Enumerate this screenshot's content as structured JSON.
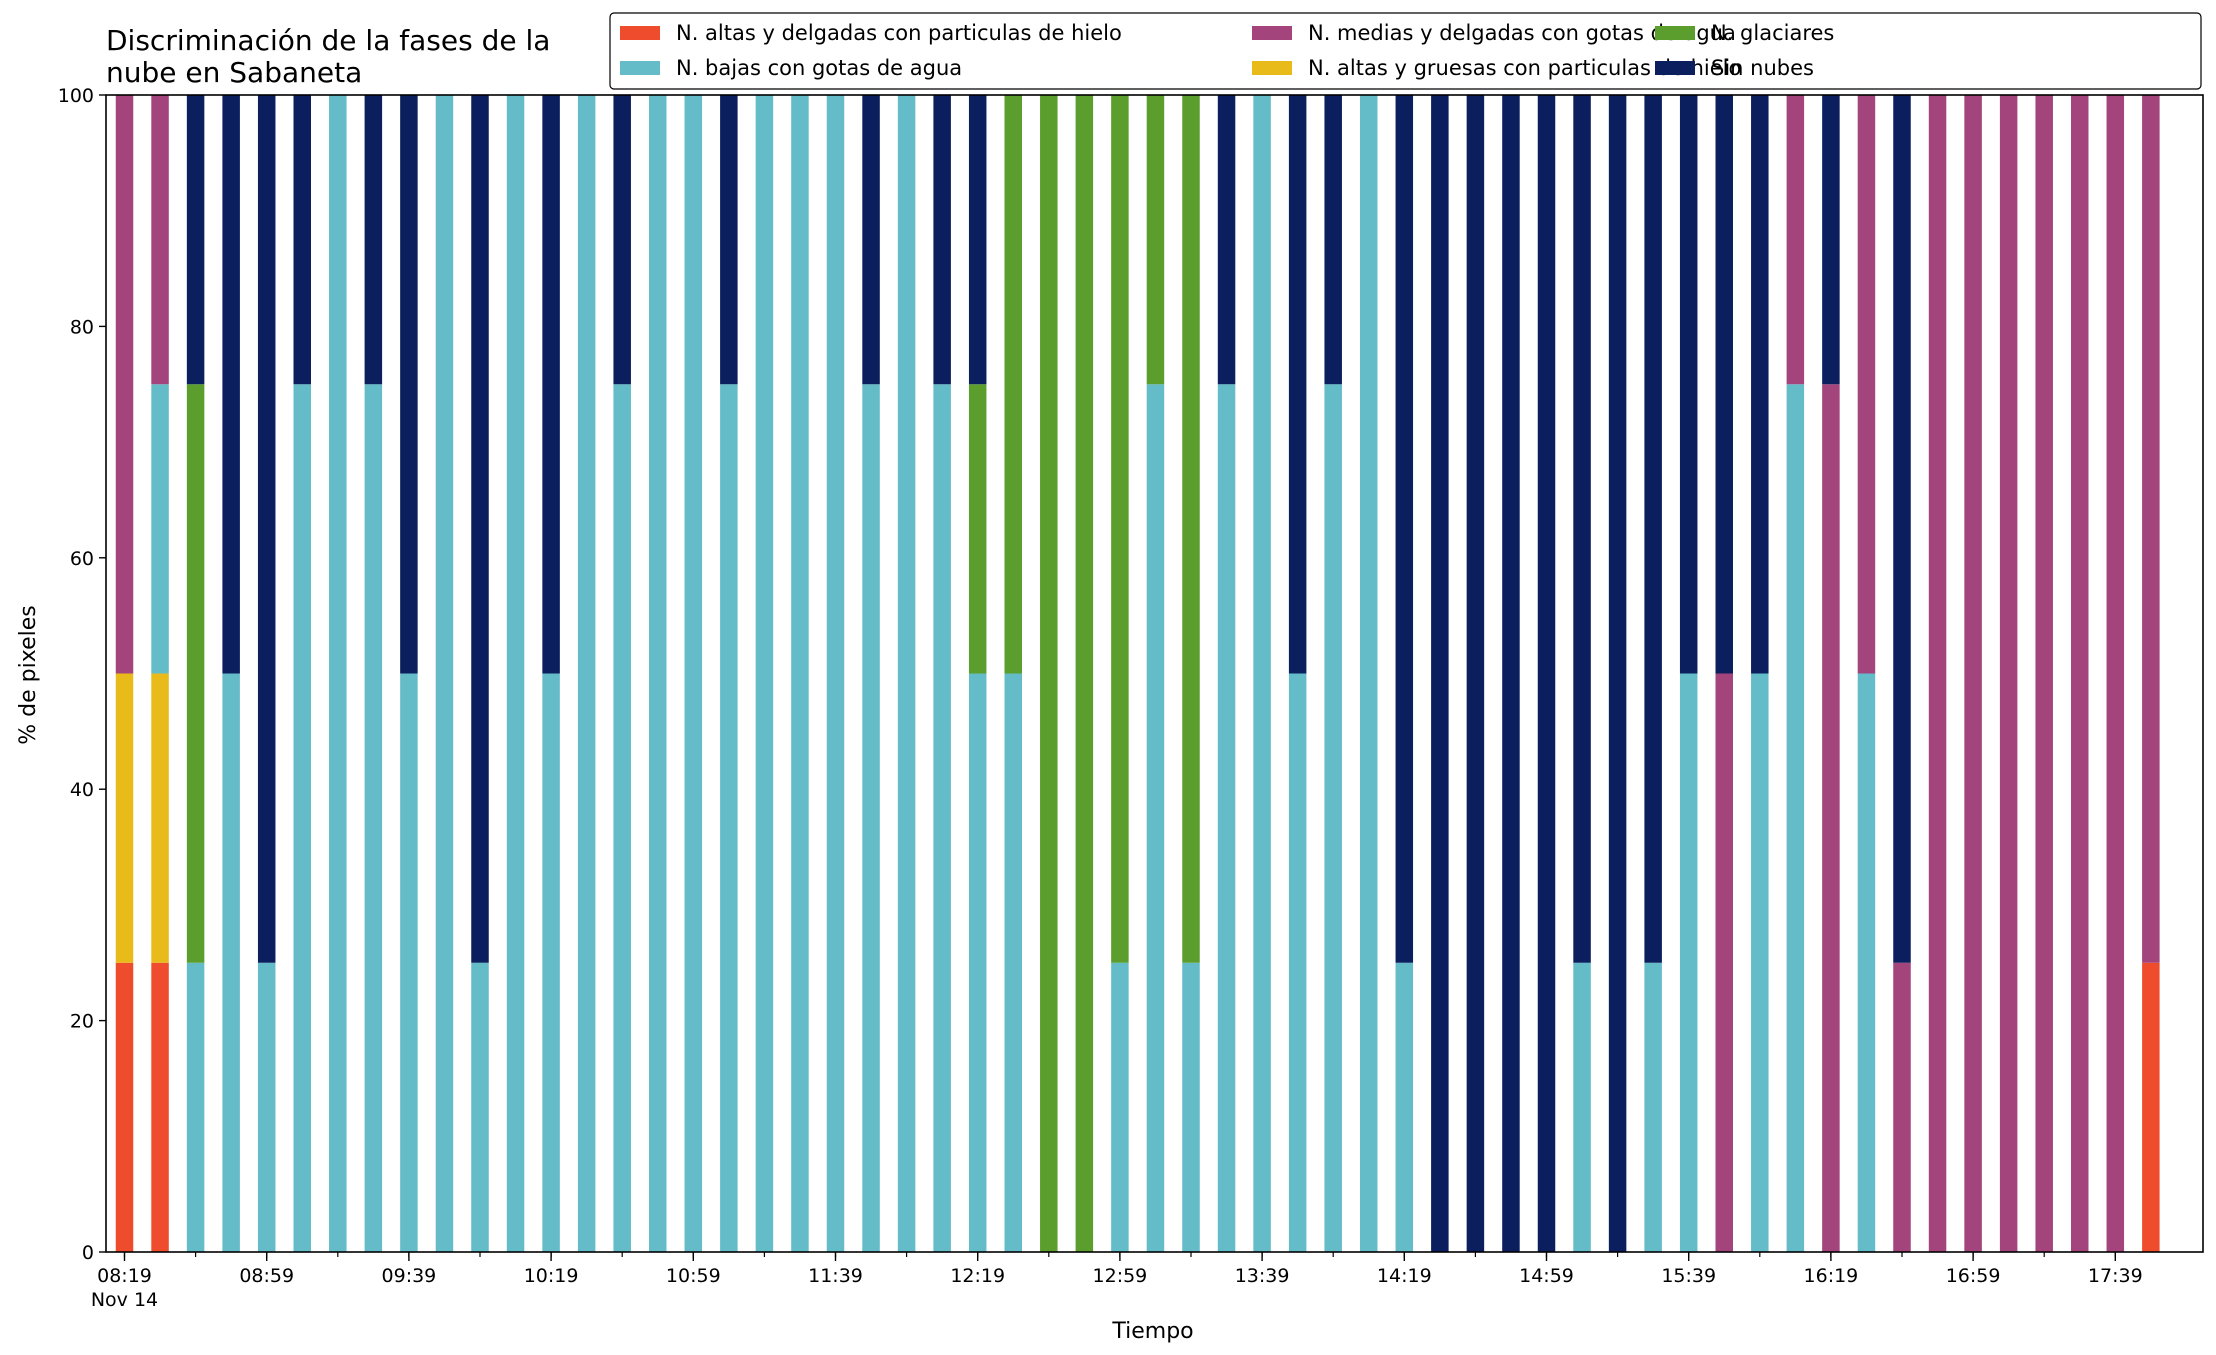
{
  "chart_data": {
    "type": "bar",
    "stacked": true,
    "title": "Discriminación de la fases de la\nnube en Sabaneta",
    "xlabel": "Tiempo",
    "ylabel": "% de pixeles",
    "ylim": [
      0,
      100
    ],
    "yticks": [
      0,
      20,
      40,
      60,
      80,
      100
    ],
    "grid": false,
    "legend_position": "top-right",
    "x": [
      "08:19",
      "08:29",
      "08:39",
      "08:49",
      "08:59",
      "09:09",
      "09:19",
      "09:29",
      "09:39",
      "09:49",
      "09:59",
      "10:09",
      "10:19",
      "10:29",
      "10:39",
      "10:49",
      "10:59",
      "11:09",
      "11:19",
      "11:29",
      "11:39",
      "11:49",
      "11:59",
      "12:09",
      "12:19",
      "12:29",
      "12:39",
      "12:49",
      "12:59",
      "13:09",
      "13:19",
      "13:29",
      "13:39",
      "13:49",
      "13:59",
      "14:09",
      "14:19",
      "14:29",
      "14:39",
      "14:49",
      "14:59",
      "15:09",
      "15:19",
      "15:29",
      "15:39",
      "15:49",
      "15:59",
      "16:09",
      "16:19",
      "16:29",
      "16:39",
      "16:49",
      "16:59",
      "17:09",
      "17:19",
      "17:29",
      "17:39",
      "17:49"
    ],
    "xtick_labels": [
      {
        "label": "08:19",
        "sublabel": "Nov 14",
        "index": 0
      },
      {
        "label": "08:59",
        "index": 4
      },
      {
        "label": "09:39",
        "index": 8
      },
      {
        "label": "10:19",
        "index": 12
      },
      {
        "label": "10:59",
        "index": 16
      },
      {
        "label": "11:39",
        "index": 20
      },
      {
        "label": "12:19",
        "index": 24
      },
      {
        "label": "12:59",
        "index": 28
      },
      {
        "label": "13:39",
        "index": 32
      },
      {
        "label": "14:19",
        "index": 36
      },
      {
        "label": "14:59",
        "index": 40
      },
      {
        "label": "15:39",
        "index": 44
      },
      {
        "label": "16:19",
        "index": 48
      },
      {
        "label": "16:59",
        "index": 52
      },
      {
        "label": "17:39",
        "index": 56
      }
    ],
    "legend_order": [
      0,
      2,
      4,
      1,
      3,
      5
    ],
    "series": [
      {
        "name": "N. altas y delgadas con particulas de hielo",
        "color": "#ee4c2c",
        "values": [
          25,
          25,
          0,
          0,
          0,
          0,
          0,
          0,
          0,
          0,
          0,
          0,
          0,
          0,
          0,
          0,
          0,
          0,
          0,
          0,
          0,
          0,
          0,
          0,
          0,
          0,
          0,
          0,
          0,
          0,
          0,
          0,
          0,
          0,
          0,
          0,
          0,
          0,
          0,
          0,
          0,
          0,
          0,
          0,
          0,
          0,
          0,
          0,
          0,
          0,
          0,
          0,
          0,
          0,
          0,
          0,
          0,
          25
        ]
      },
      {
        "name": "N. altas y gruesas con particulas de hielo",
        "color": "#e8bb1b",
        "values": [
          25,
          25,
          0,
          0,
          0,
          0,
          0,
          0,
          0,
          0,
          0,
          0,
          0,
          0,
          0,
          0,
          0,
          0,
          0,
          0,
          0,
          0,
          0,
          0,
          0,
          0,
          0,
          0,
          0,
          0,
          0,
          0,
          0,
          0,
          0,
          0,
          0,
          0,
          0,
          0,
          0,
          0,
          0,
          0,
          0,
          0,
          0,
          0,
          0,
          0,
          0,
          0,
          0,
          0,
          0,
          0,
          0,
          0
        ]
      },
      {
        "name": "N. bajas con gotas de agua",
        "color": "#64bcc8",
        "values": [
          0,
          25,
          25,
          50,
          25,
          75,
          100,
          75,
          50,
          100,
          25,
          100,
          50,
          100,
          75,
          100,
          100,
          75,
          100,
          100,
          100,
          75,
          100,
          75,
          50,
          50,
          0,
          0,
          25,
          75,
          25,
          75,
          100,
          50,
          75,
          100,
          25,
          0,
          0,
          0,
          0,
          25,
          0,
          25,
          50,
          0,
          50,
          75,
          0,
          50,
          0,
          0,
          0,
          0,
          0,
          0,
          0,
          0
        ]
      },
      {
        "name": "N. glaciares",
        "color": "#5c9e2d",
        "values": [
          0,
          0,
          50,
          0,
          0,
          0,
          0,
          0,
          0,
          0,
          0,
          0,
          0,
          0,
          0,
          0,
          0,
          0,
          0,
          0,
          0,
          0,
          0,
          0,
          25,
          50,
          100,
          100,
          75,
          25,
          75,
          0,
          0,
          0,
          0,
          0,
          0,
          0,
          0,
          0,
          0,
          0,
          0,
          0,
          0,
          0,
          0,
          0,
          0,
          0,
          0,
          0,
          0,
          0,
          0,
          0,
          0,
          0
        ]
      },
      {
        "name": "N. medias y delgadas con gotas de agua",
        "color": "#a3447c",
        "values": [
          50,
          25,
          0,
          0,
          0,
          0,
          0,
          0,
          0,
          0,
          0,
          0,
          0,
          0,
          0,
          0,
          0,
          0,
          0,
          0,
          0,
          0,
          0,
          0,
          0,
          0,
          0,
          0,
          0,
          0,
          0,
          0,
          0,
          0,
          0,
          0,
          0,
          0,
          0,
          0,
          0,
          0,
          0,
          0,
          0,
          50,
          0,
          25,
          75,
          50,
          25,
          100,
          100,
          100,
          100,
          100,
          100,
          75
        ]
      },
      {
        "name": "Sin nubes",
        "color": "#0b1f5e",
        "values": [
          0,
          0,
          25,
          50,
          75,
          25,
          0,
          25,
          50,
          0,
          75,
          0,
          50,
          0,
          25,
          0,
          0,
          25,
          0,
          0,
          0,
          25,
          0,
          25,
          25,
          0,
          0,
          0,
          0,
          0,
          0,
          25,
          0,
          50,
          25,
          0,
          75,
          100,
          100,
          100,
          100,
          75,
          100,
          75,
          50,
          50,
          50,
          0,
          25,
          0,
          75,
          0,
          0,
          0,
          0,
          0,
          0,
          0
        ]
      }
    ]
  }
}
